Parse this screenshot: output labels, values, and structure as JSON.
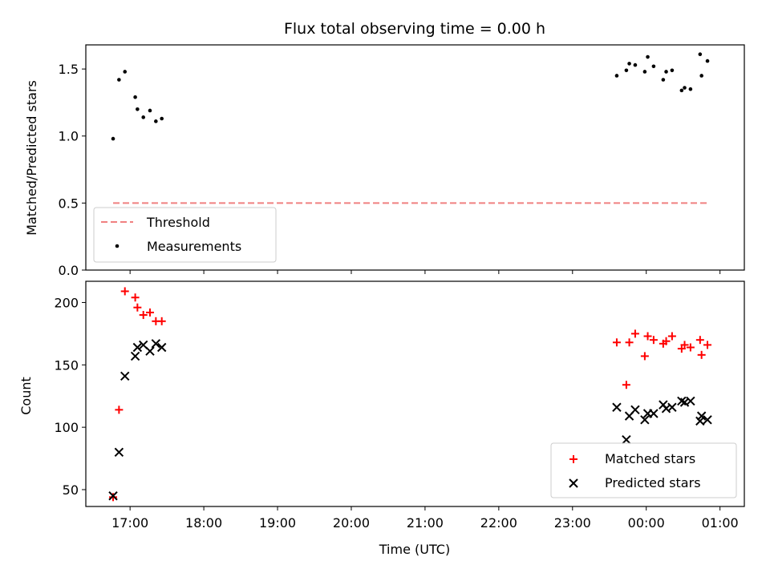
{
  "chart_data": [
    {
      "type": "scatter",
      "title": "Flux total observing time = 0.00 h",
      "ylabel": "Matched/Predicted stars",
      "xlabel": "",
      "ylim": [
        0,
        1.68
      ],
      "yticks": [
        0.0,
        0.5,
        1.0,
        1.5
      ],
      "ytick_labels": [
        "0.0",
        "0.5",
        "1.0",
        "1.5"
      ],
      "xlim_hours": [
        16.4,
        25.33
      ],
      "grid": false,
      "legend_position": "lower-left",
      "threshold": {
        "name": "Threshold",
        "value": 0.5,
        "x_start": 16.77,
        "x_end": 24.83,
        "color": "#f08080"
      },
      "series": [
        {
          "name": "Measurements",
          "color": "#000000",
          "x": [
            16.77,
            16.85,
            16.93,
            17.07,
            17.1,
            17.18,
            17.27,
            17.35,
            17.43,
            23.6,
            23.73,
            23.77,
            23.85,
            23.98,
            24.02,
            24.1,
            24.23,
            24.27,
            24.35,
            24.48,
            24.52,
            24.6,
            24.73,
            24.75,
            24.83
          ],
          "y": [
            0.98,
            1.42,
            1.48,
            1.29,
            1.2,
            1.14,
            1.19,
            1.11,
            1.13,
            1.45,
            1.49,
            1.54,
            1.53,
            1.48,
            1.59,
            1.52,
            1.42,
            1.48,
            1.49,
            1.34,
            1.36,
            1.35,
            1.61,
            1.45,
            1.56
          ]
        }
      ]
    },
    {
      "type": "scatter",
      "title": "",
      "ylabel": "Count",
      "xlabel": "Time (UTC)",
      "ylim": [
        36.5,
        217
      ],
      "yticks": [
        50,
        100,
        150,
        200
      ],
      "ytick_labels": [
        "50",
        "100",
        "150",
        "200"
      ],
      "xlim_hours": [
        16.4,
        25.33
      ],
      "xticks_hours": [
        17,
        18,
        19,
        20,
        21,
        22,
        23,
        24,
        25
      ],
      "xtick_labels": [
        "17:00",
        "18:00",
        "19:00",
        "20:00",
        "21:00",
        "22:00",
        "23:00",
        "00:00",
        "01:00"
      ],
      "grid": false,
      "legend_position": "lower-right",
      "series": [
        {
          "name": "Matched stars",
          "marker": "+",
          "color": "#ff0000",
          "x": [
            16.77,
            16.85,
            16.93,
            17.07,
            17.1,
            17.18,
            17.27,
            17.35,
            17.43,
            23.6,
            23.73,
            23.77,
            23.85,
            23.98,
            24.02,
            24.1,
            24.23,
            24.27,
            24.35,
            24.48,
            24.52,
            24.6,
            24.73,
            24.75,
            24.83
          ],
          "y": [
            44,
            114,
            209,
            204,
            196,
            190,
            192,
            185,
            185,
            168,
            134,
            168,
            175,
            157,
            173,
            170,
            167,
            169,
            173,
            163,
            166,
            164,
            170,
            158,
            166
          ]
        },
        {
          "name": "Predicted stars",
          "marker": "x",
          "color": "#000000",
          "x": [
            16.77,
            16.85,
            16.93,
            17.07,
            17.1,
            17.18,
            17.27,
            17.35,
            17.43,
            23.6,
            23.73,
            23.77,
            23.85,
            23.98,
            24.02,
            24.1,
            24.23,
            24.27,
            24.35,
            24.48,
            24.52,
            24.6,
            24.73,
            24.75,
            24.83
          ],
          "y": [
            45,
            80,
            141,
            157,
            164,
            166,
            161,
            167,
            164,
            116,
            90,
            109,
            114,
            106,
            111,
            111,
            118,
            115,
            116,
            121,
            120,
            121,
            105,
            109,
            106
          ]
        }
      ]
    }
  ]
}
